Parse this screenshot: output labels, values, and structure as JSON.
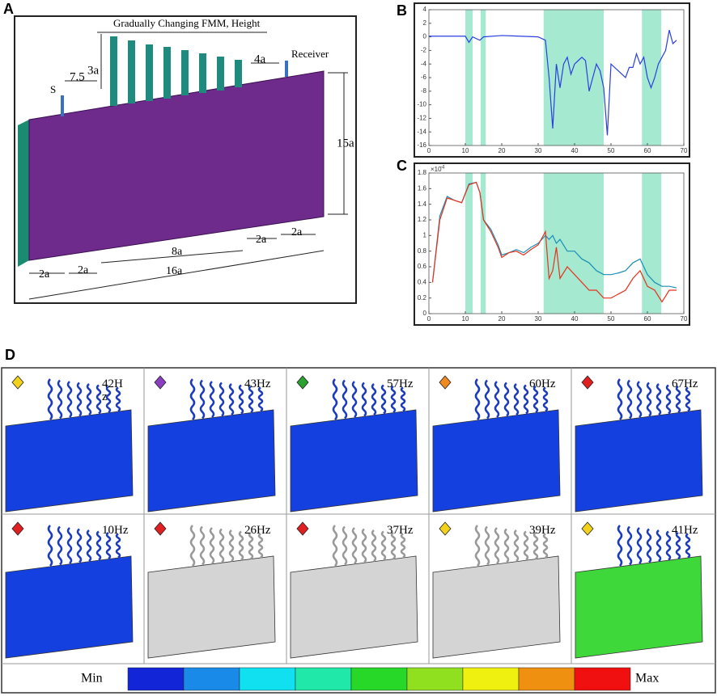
{
  "panel_labels": [
    "A",
    "B",
    "C",
    "D"
  ],
  "panel_a": {
    "title": "Gradually Changing FMM, Height",
    "receiver": "Receiver",
    "source": "S",
    "dims": [
      "3a",
      "7.5",
      "4a",
      "15a",
      "2a",
      "2a",
      "8a",
      "2a",
      "2a",
      "16a"
    ]
  },
  "chart_data": [
    {
      "type": "line",
      "xlim": [
        0,
        70
      ],
      "xticks": [
        0,
        10,
        20,
        30,
        40,
        50,
        60,
        70
      ],
      "ylim": [
        -16,
        4
      ],
      "yticks": [
        -16,
        -14,
        -12,
        -10,
        -8,
        -6,
        -4,
        -2,
        0,
        2,
        4
      ],
      "shaded_ranges": [
        [
          10,
          12
        ],
        [
          14.2,
          15.6
        ],
        [
          31.5,
          48
        ],
        [
          58.5,
          63.8
        ]
      ],
      "shade_color": "#8fe3c4",
      "x": [
        0,
        5,
        10,
        11,
        12,
        14,
        15,
        20,
        25,
        30,
        32,
        33,
        34,
        35,
        36,
        37,
        38,
        39,
        40,
        41,
        42,
        43,
        44,
        45,
        46,
        47,
        48,
        49,
        50,
        52,
        54,
        55,
        56,
        57,
        58,
        59,
        60,
        61,
        62,
        63,
        64,
        65,
        66,
        67,
        68
      ],
      "series": [
        {
          "name": null,
          "color": "#2a3fe0",
          "values": [
            0.1,
            0.1,
            0.1,
            -0.8,
            0,
            -0.5,
            0,
            0.2,
            0.1,
            0,
            -0.5,
            -6,
            -13.5,
            -4,
            -7.5,
            -4,
            -3,
            -5.5,
            -4,
            -3.5,
            -3,
            -3.5,
            -8,
            -6,
            -4,
            -5,
            -7.5,
            -14.5,
            -4,
            -5,
            -6,
            -4.5,
            -4.5,
            -2.5,
            -4,
            -3,
            -6,
            -7.5,
            -6,
            -4,
            -3,
            -2,
            1,
            -1,
            -0.5
          ]
        }
      ]
    },
    {
      "type": "line",
      "scale_label": "×10",
      "scale_exp": "-4",
      "xlim": [
        0,
        70
      ],
      "xticks": [
        0,
        10,
        20,
        30,
        40,
        50,
        60,
        70
      ],
      "ylim": [
        0,
        1.8
      ],
      "yticks": [
        0,
        0.2,
        0.4,
        0.6,
        0.8,
        1,
        1.2,
        1.4,
        1.6,
        1.8
      ],
      "shaded_ranges": [
        [
          10,
          12
        ],
        [
          14.2,
          15.6
        ],
        [
          31.5,
          48
        ],
        [
          58.5,
          63.8
        ]
      ],
      "shade_color": "#8fe3c4",
      "x": [
        1,
        3,
        5,
        7,
        9,
        11,
        13,
        14,
        15,
        17,
        19,
        20,
        22,
        24,
        26,
        28,
        30,
        32,
        33,
        34,
        35,
        36,
        38,
        40,
        42,
        44,
        46,
        48,
        50,
        52,
        54,
        56,
        58,
        60,
        62,
        64,
        66,
        68
      ],
      "series": [
        {
          "name": null,
          "color": "#1a8fb8",
          "values": [
            0.4,
            1.25,
            1.5,
            1.45,
            1.42,
            1.66,
            1.68,
            1.55,
            1.2,
            1.08,
            0.88,
            0.75,
            0.78,
            0.82,
            0.78,
            0.85,
            0.9,
            1.0,
            0.95,
            1.0,
            0.9,
            0.95,
            0.8,
            0.8,
            0.7,
            0.65,
            0.55,
            0.5,
            0.5,
            0.52,
            0.55,
            0.65,
            0.7,
            0.5,
            0.4,
            0.35,
            0.35,
            0.33
          ]
        },
        {
          "name": null,
          "color": "#e8321e",
          "values": [
            0.4,
            1.2,
            1.48,
            1.45,
            1.42,
            1.65,
            1.68,
            1.55,
            1.2,
            1.05,
            0.85,
            0.72,
            0.78,
            0.8,
            0.75,
            0.82,
            0.88,
            1.05,
            0.45,
            0.55,
            0.85,
            0.45,
            0.6,
            0.5,
            0.4,
            0.3,
            0.3,
            0.2,
            0.2,
            0.25,
            0.3,
            0.45,
            0.55,
            0.35,
            0.3,
            0.15,
            0.3,
            0.3
          ]
        }
      ]
    }
  ],
  "panel_d": {
    "cells": [
      {
        "label": "42H\nz",
        "plate_color": "#1540e0",
        "icon_color": "#f2d21a"
      },
      {
        "label": "43Hz",
        "plate_color": "#1540e0",
        "icon_color": "#8a3fc0"
      },
      {
        "label": "57Hz",
        "plate_color": "#1540e0",
        "icon_color": "#2aa030"
      },
      {
        "label": "60Hz",
        "plate_color": "#1540e0",
        "icon_color": "#f08a20"
      },
      {
        "label": "67Hz",
        "plate_color": "#1540e0",
        "icon_color": "#e02020"
      },
      {
        "label": "10Hz",
        "plate_color": "#1540e0",
        "icon_color": "#e02020"
      },
      {
        "label": "26Hz",
        "plate_color": "#d4d4d4",
        "icon_color": "#e02020"
      },
      {
        "label": "37Hz",
        "plate_color": "#d4d4d4",
        "icon_color": "#e02020"
      },
      {
        "label": "39Hz",
        "plate_color": "#d4d4d4",
        "icon_color": "#f2d21a"
      },
      {
        "label": "41Hz",
        "plate_color": "#3fd83a",
        "icon_color": "#f2d21a"
      }
    ],
    "colorbar": {
      "min": "Min",
      "max": "Max",
      "colors": [
        "#1226d8",
        "#1a8ae8",
        "#10e0f0",
        "#20e8a8",
        "#28d828",
        "#90e020",
        "#f0f010",
        "#f09010",
        "#f01010"
      ]
    }
  }
}
